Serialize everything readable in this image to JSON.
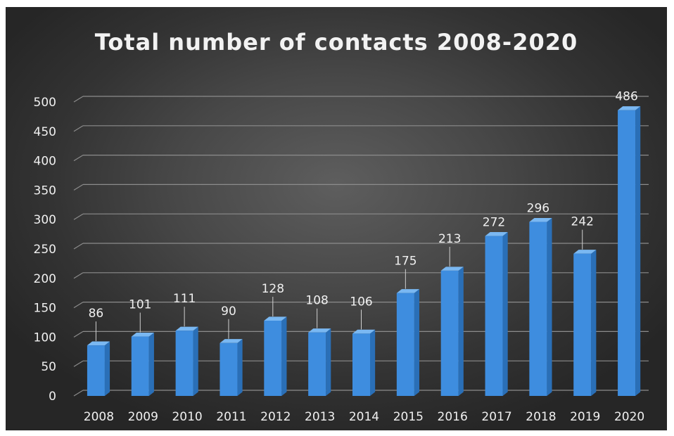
{
  "chart_data": {
    "type": "bar",
    "title": "Total number of contacts 2008-2020",
    "xlabel": "",
    "ylabel": "",
    "categories": [
      "2008",
      "2009",
      "2010",
      "2011",
      "2012",
      "2013",
      "2014",
      "2015",
      "2016",
      "2017",
      "2018",
      "2019",
      "2020"
    ],
    "values": [
      86,
      101,
      111,
      90,
      128,
      108,
      106,
      175,
      213,
      272,
      296,
      242,
      486
    ],
    "ylim": [
      0,
      500
    ],
    "yticks": [
      0,
      50,
      100,
      150,
      200,
      250,
      300,
      350,
      400,
      450,
      500
    ],
    "grid": true,
    "legend": "none",
    "style": "3d-column",
    "colors": {
      "bar": "#3e8ddf",
      "bar_side": "#2a6fb7",
      "bar_top": "#7ab8f2",
      "grid": "#8c8c8c",
      "text": "#f0f0f0",
      "background": "#3b3b3b"
    }
  }
}
